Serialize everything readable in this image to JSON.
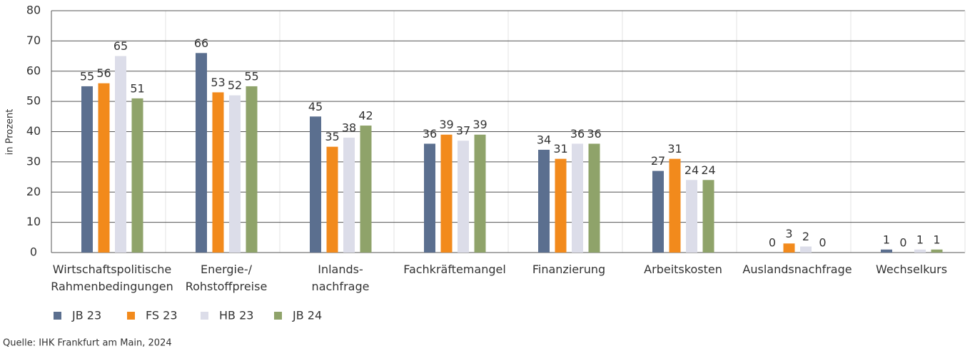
{
  "chart_data": {
    "type": "bar",
    "y_label": "in Prozent",
    "categories": [
      "Wirtschaftspolitische\nRahmenbedingungen",
      "Energie-/\nRohstoffpreise",
      "Inlands-\nnachfrage",
      "Fachkräftemangel",
      "Finanzierung",
      "Arbeitskosten",
      "Auslandsnachfrage",
      "Wechselkurs"
    ],
    "series": [
      {
        "name": "JB 23",
        "color": "#5b6f8f",
        "values": [
          55,
          66,
          45,
          36,
          34,
          27,
          0,
          1
        ]
      },
      {
        "name": "FS 23",
        "color": "#f28a1c",
        "values": [
          56,
          53,
          35,
          39,
          31,
          31,
          3,
          0
        ]
      },
      {
        "name": "HB 23",
        "color": "#dcdde9",
        "values": [
          65,
          52,
          38,
          37,
          36,
          24,
          2,
          1
        ]
      },
      {
        "name": "JB 24",
        "color": "#8fa36a",
        "values": [
          51,
          55,
          42,
          39,
          36,
          24,
          0,
          1
        ]
      }
    ],
    "ylim": [
      0,
      80
    ],
    "yticks": [
      0,
      10,
      20,
      30,
      40,
      50,
      60,
      70,
      80
    ],
    "grid": true,
    "legend": "bottom-left",
    "source": "Quelle: IHK Frankfurt am Main, 2024"
  }
}
